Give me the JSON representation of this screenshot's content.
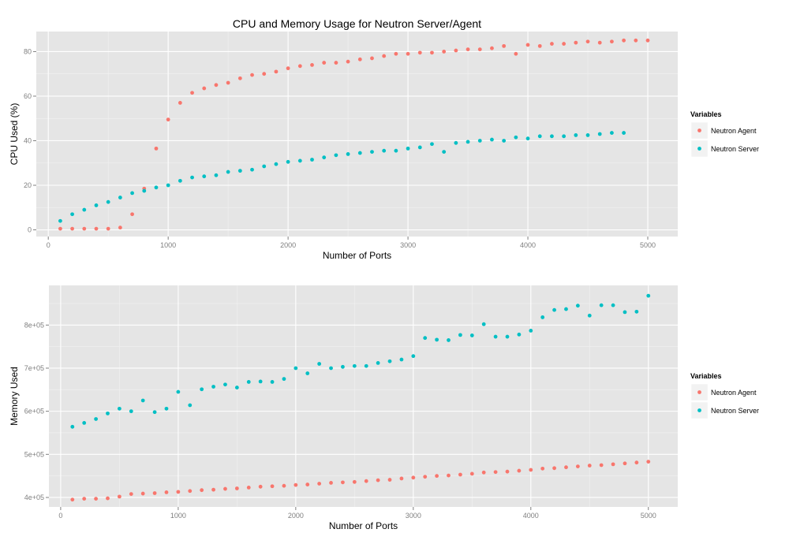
{
  "chart_data": [
    {
      "type": "scatter",
      "title": "CPU and Memory Usage for Neutron Server/Agent",
      "xlabel": "Number of Ports",
      "ylabel": "CPU Used (%)",
      "xlim": [
        -100,
        5250
      ],
      "ylim": [
        -3,
        89
      ],
      "x_ticks": [
        0,
        1000,
        2000,
        3000,
        4000,
        5000
      ],
      "x_tick_labels": [
        "0",
        "1000",
        "2000",
        "3000",
        "4000",
        "5000"
      ],
      "y_ticks": [
        0,
        20,
        40,
        60,
        80
      ],
      "y_tick_labels": [
        "0",
        "20",
        "40",
        "60",
        "80"
      ],
      "grid": true,
      "legend": {
        "title": "Variables",
        "placement": "right"
      },
      "series": [
        {
          "name": "Neutron Agent",
          "color": "#F8766D",
          "x": [
            100,
            200,
            300,
            400,
            500,
            600,
            700,
            800,
            900,
            1000,
            1100,
            1200,
            1300,
            1400,
            1500,
            1600,
            1700,
            1800,
            1900,
            2000,
            2100,
            2200,
            2300,
            2400,
            2500,
            2600,
            2700,
            2800,
            2900,
            3000,
            3100,
            3200,
            3300,
            3400,
            3500,
            3600,
            3700,
            3800,
            3900,
            4000,
            4100,
            4200,
            4300,
            4400,
            4500,
            4600,
            4700,
            4800,
            4900,
            5000
          ],
          "y": [
            0.5,
            0.5,
            0.5,
            0.5,
            0.5,
            1,
            7,
            18.5,
            36.5,
            49.5,
            57,
            61.5,
            63.5,
            65,
            66,
            68,
            69.5,
            70,
            71,
            72.5,
            73.5,
            74,
            75,
            75,
            75.5,
            76.5,
            77,
            78,
            79,
            79,
            79.5,
            79.5,
            80,
            80.5,
            81,
            81,
            81.5,
            82.5,
            79,
            83,
            82.5,
            83.5,
            83.5,
            84,
            84.5,
            84,
            84.5,
            85,
            85,
            85
          ]
        },
        {
          "name": "Neutron Server",
          "color": "#00BFC4",
          "x": [
            100,
            200,
            300,
            400,
            500,
            600,
            700,
            800,
            900,
            1000,
            1100,
            1200,
            1300,
            1400,
            1500,
            1600,
            1700,
            1800,
            1900,
            2000,
            2100,
            2200,
            2300,
            2400,
            2500,
            2600,
            2700,
            2800,
            2900,
            3000,
            3100,
            3200,
            3300,
            3400,
            3500,
            3600,
            3700,
            3800,
            3900,
            4000,
            4100,
            4200,
            4300,
            4400,
            4500,
            4600,
            4700,
            4800
          ],
          "y": [
            4,
            7,
            9,
            11,
            12.5,
            14.5,
            16.5,
            17.5,
            19,
            20,
            22,
            23.5,
            24,
            24.5,
            26,
            26.5,
            27,
            28.5,
            29.5,
            30.5,
            31,
            31.5,
            32.5,
            33.5,
            34,
            34.5,
            35,
            35.5,
            35.5,
            36.5,
            37,
            38.5,
            35,
            39,
            39.5,
            40,
            40.5,
            40,
            41.5,
            41,
            42,
            42,
            42,
            42.5,
            42.5,
            43,
            43.5,
            43.5
          ]
        }
      ]
    },
    {
      "type": "scatter",
      "title": "",
      "xlabel": "Number of Ports",
      "ylabel": "Memory Used",
      "xlim": [
        -100,
        5250
      ],
      "ylim": [
        378000,
        892000
      ],
      "x_ticks": [
        0,
        1000,
        2000,
        3000,
        4000,
        5000
      ],
      "x_tick_labels": [
        "0",
        "1000",
        "2000",
        "3000",
        "4000",
        "5000"
      ],
      "y_ticks": [
        400000,
        500000,
        600000,
        700000,
        800000
      ],
      "y_tick_labels": [
        "4e+05",
        "5e+05",
        "6e+05",
        "7e+05",
        "8e+05"
      ],
      "grid": true,
      "legend": {
        "title": "Variables",
        "placement": "right"
      },
      "series": [
        {
          "name": "Neutron Agent",
          "color": "#F8766D",
          "x": [
            100,
            200,
            300,
            400,
            500,
            600,
            700,
            800,
            900,
            1000,
            1100,
            1200,
            1300,
            1400,
            1500,
            1600,
            1700,
            1800,
            1900,
            2000,
            2100,
            2200,
            2300,
            2400,
            2500,
            2600,
            2700,
            2800,
            2900,
            3000,
            3100,
            3200,
            3300,
            3400,
            3500,
            3600,
            3700,
            3800,
            3900,
            4000,
            4100,
            4200,
            4300,
            4400,
            4500,
            4600,
            4700,
            4800,
            4900,
            5000
          ],
          "y": [
            395000,
            397000,
            397000,
            398000,
            402000,
            408000,
            409000,
            410000,
            412000,
            413000,
            415000,
            417000,
            418000,
            420000,
            421000,
            423000,
            425000,
            426000,
            427000,
            429000,
            430000,
            432000,
            434000,
            435000,
            436000,
            438000,
            440000,
            441000,
            444000,
            446000,
            448000,
            450000,
            451000,
            453000,
            455000,
            458000,
            459000,
            460000,
            462000,
            464000,
            467000,
            468000,
            470000,
            472000,
            474000,
            475000,
            477000,
            479000,
            481000,
            483000
          ]
        },
        {
          "name": "Neutron Server",
          "color": "#00BFC4",
          "x": [
            100,
            200,
            300,
            400,
            500,
            600,
            700,
            800,
            900,
            1000,
            1100,
            1200,
            1300,
            1400,
            1500,
            1600,
            1700,
            1800,
            1900,
            2000,
            2100,
            2200,
            2300,
            2400,
            2500,
            2600,
            2700,
            2800,
            2900,
            3000,
            3100,
            3200,
            3300,
            3400,
            3500,
            3600,
            3700,
            3800,
            3900,
            4000,
            4100,
            4200,
            4300,
            4400,
            4500,
            4600,
            4700,
            4800,
            4900,
            5000
          ],
          "y": [
            564000,
            573000,
            582000,
            595000,
            606000,
            600000,
            625000,
            598000,
            606000,
            645000,
            614000,
            651000,
            657000,
            662000,
            655000,
            668000,
            669000,
            668000,
            675000,
            700000,
            688000,
            710000,
            700000,
            703000,
            705000,
            705000,
            712000,
            716000,
            720000,
            728000,
            770000,
            766000,
            765000,
            777000,
            776000,
            802000,
            773000,
            773000,
            778000,
            787000,
            818000,
            835000,
            837000,
            845000,
            822000,
            846000,
            846000,
            830000,
            831000,
            868000
          ]
        }
      ]
    }
  ]
}
